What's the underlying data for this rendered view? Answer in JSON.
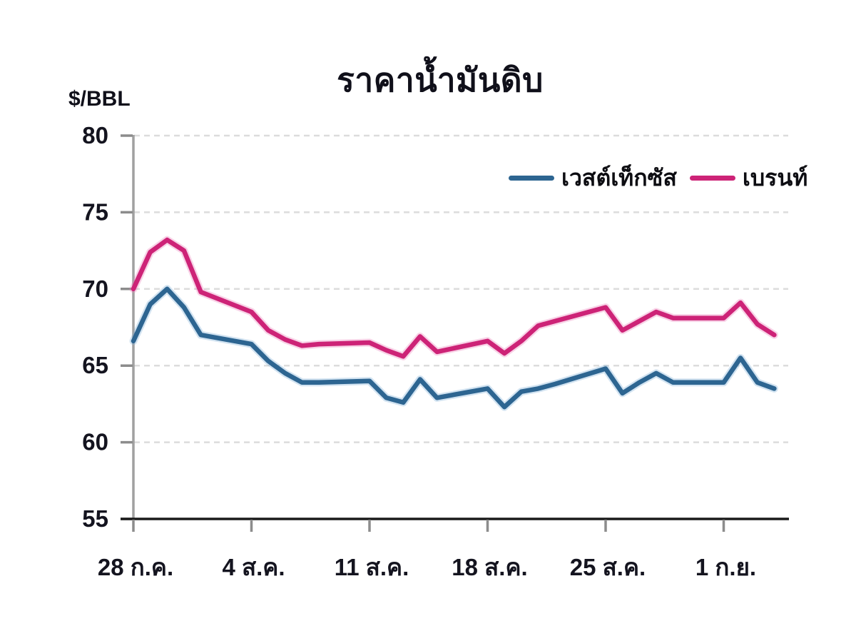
{
  "chart_data": {
    "type": "line",
    "title": "ราคาน้ำมันดิบ",
    "ylabel": "$/BBL",
    "ylim": [
      55,
      80
    ],
    "yticks": [
      80,
      75,
      70,
      65,
      60,
      55
    ],
    "grid": "horizontal-dashed",
    "legend_position": "top-right-inside",
    "xticks": [
      {
        "label": "28 ก.ค.",
        "day": 0
      },
      {
        "label": "4 ส.ค.",
        "day": 7
      },
      {
        "label": "11 ส.ค.",
        "day": 14
      },
      {
        "label": "18 ส.ค.",
        "day": 21
      },
      {
        "label": "25 ส.ค.",
        "day": 28
      },
      {
        "label": "1 ก.ย.",
        "day": 35
      }
    ],
    "x_days": [
      0,
      1,
      2,
      3,
      4,
      7,
      8,
      9,
      10,
      11,
      14,
      15,
      16,
      17,
      18,
      21,
      22,
      23,
      24,
      25,
      28,
      29,
      30,
      31,
      32,
      35,
      36,
      37,
      38
    ],
    "series": [
      {
        "name": "เวสต์เท็กซัส",
        "color": "#2d6591",
        "halo": "rgba(125,175,215,0.35)",
        "values": [
          66.6,
          69.0,
          70.0,
          68.8,
          67.0,
          66.4,
          65.3,
          64.5,
          63.9,
          63.9,
          64.0,
          62.9,
          62.6,
          64.1,
          62.9,
          63.5,
          62.3,
          63.3,
          63.5,
          63.8,
          64.8,
          63.2,
          63.9,
          64.5,
          63.9,
          63.9,
          65.5,
          63.9,
          63.5
        ]
      },
      {
        "name": "เบรนท์",
        "color": "#cd2377",
        "halo": "rgba(235,130,185,0.35)",
        "values": [
          70.0,
          72.4,
          73.2,
          72.5,
          69.8,
          68.5,
          67.3,
          66.7,
          66.3,
          66.4,
          66.5,
          66.0,
          65.6,
          66.9,
          65.9,
          66.6,
          65.8,
          66.6,
          67.6,
          67.9,
          68.8,
          67.3,
          67.9,
          68.5,
          68.1,
          68.1,
          69.1,
          67.7,
          67.0
        ]
      }
    ],
    "colors": {
      "axis": "#1a1a1a",
      "y_axis_line": "#a0a0a0",
      "tick": "#8c8c8c",
      "gridline": "#dcdcdc",
      "tick_label": "#14141f"
    }
  }
}
